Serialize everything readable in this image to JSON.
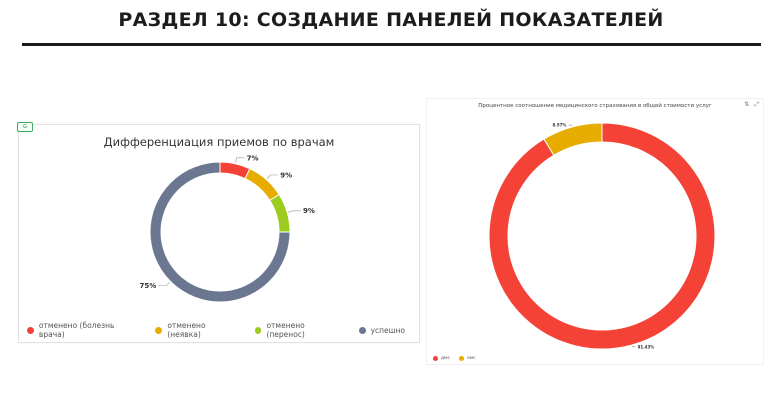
{
  "slide": {
    "title": "РАЗДЕЛ 10: СОЗДАНИЕ ПАНЕЛЕЙ ПОКАЗАТЕЛЕЙ"
  },
  "left_panel": {
    "badge": "G"
  },
  "right_panel": {
    "tools": [
      "⇅",
      "⤢"
    ]
  },
  "colors": {
    "red": "#f44336",
    "amber": "#e6ac00",
    "green": "#9ccc1e",
    "slate": "#6b7791"
  },
  "chart_data": [
    {
      "type": "donut",
      "title": "Дифференциация приемов по врачам",
      "categories": [
        "отменено (болезнь врача)",
        "отменено (неявка)",
        "отменено (перенос)",
        "успешно"
      ],
      "values": [
        7,
        9,
        9,
        75
      ],
      "labels": [
        "7%",
        "9%",
        "9%",
        "75%"
      ],
      "colors": [
        "#f44336",
        "#e6ac00",
        "#9ccc1e",
        "#6b7791"
      ],
      "legend_position": "bottom"
    },
    {
      "type": "donut",
      "title": "Процентное соотношение медицинского страхования в общей стоимости услуг",
      "categories": [
        "дмс",
        "омс"
      ],
      "values": [
        91.43,
        8.57
      ],
      "labels": [
        "91.43%",
        "8.57%"
      ],
      "colors": [
        "#f44336",
        "#e6ac00"
      ],
      "legend_position": "bottom-left"
    }
  ]
}
